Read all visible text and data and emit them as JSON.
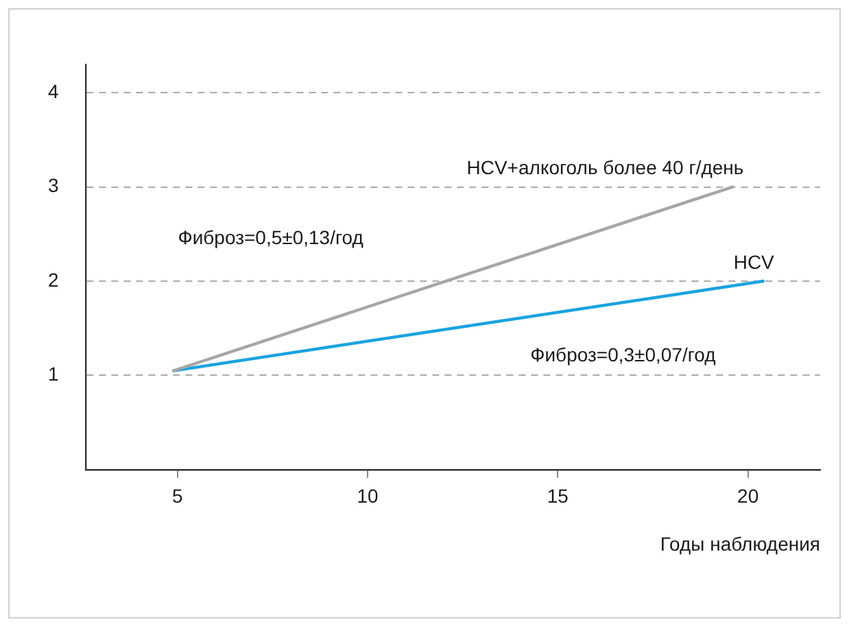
{
  "chart_data": {
    "type": "line",
    "xlabel": "Годы наблюдения",
    "xlim": [
      2.6,
      21.9
    ],
    "xticks": [
      5,
      10,
      15,
      20
    ],
    "ylim": [
      0,
      4.3
    ],
    "yticks": [
      1,
      2,
      3,
      4
    ],
    "grid": "y",
    "line_style": "solid",
    "marker": "none",
    "legend": false,
    "series": [
      {
        "name": "HCV+алкоголь более 40 г/день",
        "color": "#a6a6a6",
        "x": [
          4.9,
          19.6
        ],
        "values": [
          1.05,
          3.0
        ]
      },
      {
        "name": "HCV",
        "color": "#1aa3e0",
        "x": [
          4.9,
          20.4
        ],
        "values": [
          1.05,
          2.0
        ]
      }
    ],
    "annotations": [
      "Фиброз=0,5±0,13/год",
      "Фиброз=0,3±0,07/год"
    ]
  }
}
